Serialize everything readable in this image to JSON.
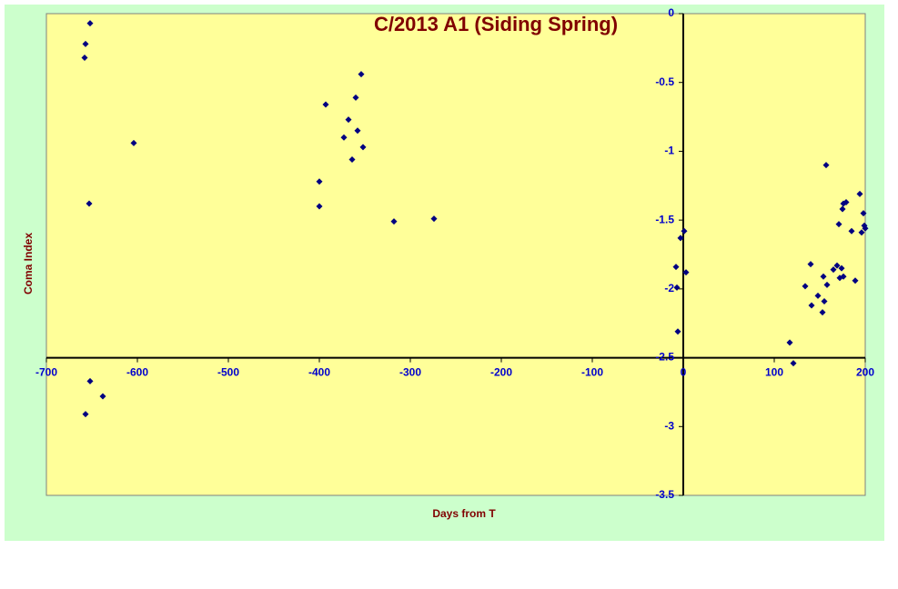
{
  "chart_data": {
    "type": "scatter",
    "title": "C/2013 A1 (Siding Spring)",
    "xlabel": "Days from T",
    "ylabel": "Coma Index",
    "x": [
      -652,
      -657,
      -658,
      -653,
      -604,
      -652,
      -638,
      -657,
      -393,
      -354,
      -360,
      -368,
      -358,
      -373,
      -352,
      -364,
      -400,
      -400,
      -318,
      -274,
      1,
      -3,
      -8,
      3,
      -7,
      -6,
      117,
      121,
      134,
      140,
      141,
      148,
      154,
      153,
      155,
      158,
      157,
      165,
      169,
      172,
      171,
      174,
      176,
      175,
      176,
      179,
      185,
      189,
      194,
      196,
      198,
      199,
      200
    ],
    "values": [
      -0.07,
      -0.22,
      -0.32,
      -1.38,
      -0.94,
      -2.67,
      -2.78,
      -2.91,
      -0.66,
      -0.44,
      -0.61,
      -0.77,
      -0.85,
      -0.9,
      -0.97,
      -1.06,
      -1.22,
      -1.4,
      -1.51,
      -1.49,
      -1.58,
      -1.63,
      -1.84,
      -1.88,
      -1.99,
      -2.31,
      -2.39,
      -2.54,
      -1.98,
      -1.82,
      -2.12,
      -2.05,
      -1.91,
      -2.17,
      -2.09,
      -1.97,
      -1.1,
      -1.86,
      -1.83,
      -1.92,
      -1.53,
      -1.85,
      -1.91,
      -1.42,
      -1.38,
      -1.37,
      -1.58,
      -1.94,
      -1.31,
      -1.59,
      -1.45,
      -1.54,
      -1.56
    ],
    "color": "#000080",
    "xlim": [
      -700,
      200
    ],
    "xticks": [
      -700,
      -600,
      -500,
      -400,
      -300,
      -200,
      -100,
      0,
      100,
      200
    ],
    "ylim": [
      -3.5,
      0
    ],
    "yticks": [
      0,
      -0.5,
      -1,
      -1.5,
      -2,
      -2.5,
      -3,
      -3.5
    ],
    "x_axis_at_y": -2.5,
    "y_axis_at_x": 0,
    "grid": false
  }
}
